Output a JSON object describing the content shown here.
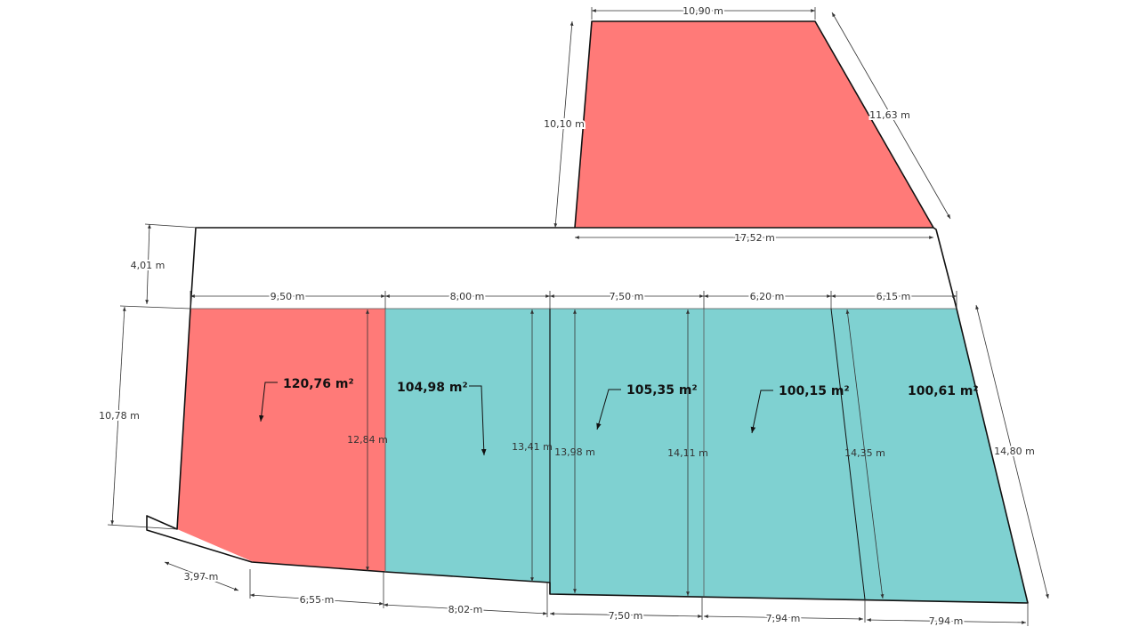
{
  "colors": {
    "red": "#ff7a78",
    "teal": "#7fd1d1",
    "outline": "#111111",
    "dimension": "#333333",
    "background": "#ffffff"
  },
  "areas": [
    {
      "label": "120,76 m²"
    },
    {
      "label": "104,98 m²"
    },
    {
      "label": "105,35 m²"
    },
    {
      "label": "100,15 m²"
    },
    {
      "label": "100,61 m²"
    }
  ],
  "dimensions": {
    "top_width": "10,90 m",
    "top_left_side": "10,10 m",
    "top_right_side": "11,63 m",
    "top_base": "17,52 m",
    "strip_height": "4,01 m",
    "seg1_width": "9,50 m",
    "seg2_width": "8,00 m",
    "seg3_width": "7,50 m",
    "seg4_width": "6,20 m",
    "seg5_width": "6,15 m",
    "left_height": "10,78 m",
    "right_side": "14,80 m",
    "h1": "12,84 m",
    "h2": "13,41 m",
    "h3": "13,98 m",
    "h4": "14,11 m",
    "h5": "14,35 m",
    "bottom_corner": "3,97 m",
    "bottom1": "6,55 m",
    "bottom2": "8,02 m",
    "bottom3": "7,50 m",
    "bottom4": "7,94 m",
    "bottom5": "7,94 m"
  }
}
